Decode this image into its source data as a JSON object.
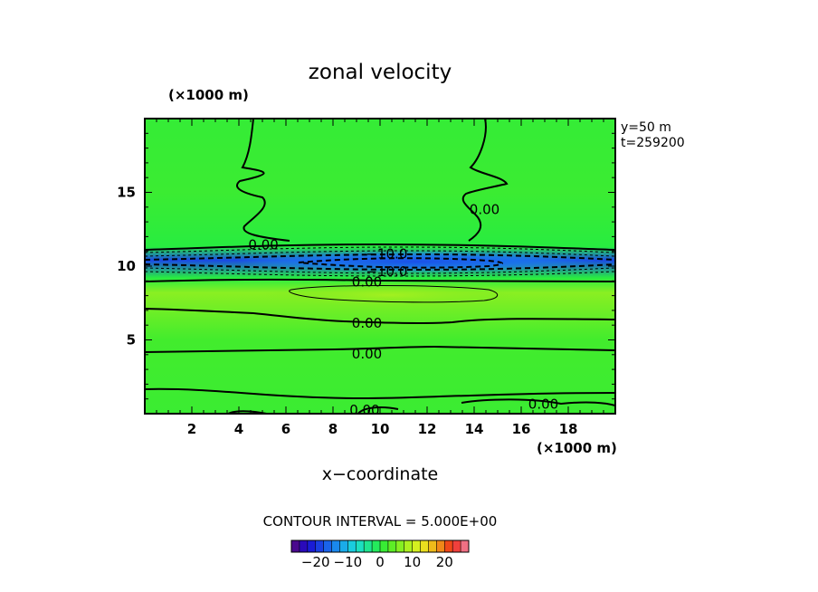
{
  "chart_data": {
    "type": "heatmap",
    "title": "zonal velocity",
    "xlabel": "x−coordinate",
    "x_unit": "(×1000 m)",
    "y_unit": "(×1000 m)",
    "annotations": [
      "y=50  m",
      "t=259200"
    ],
    "contour_interval": "CONTOUR INTERVAL = 5.000E+00",
    "xlim": [
      0,
      20
    ],
    "ylim": [
      0,
      20
    ],
    "x_ticks": [
      2,
      4,
      6,
      8,
      10,
      12,
      14,
      16,
      18
    ],
    "x_tick_labels": [
      "2",
      "4",
      "6",
      "8",
      "10",
      "12",
      "14",
      "16",
      "18"
    ],
    "y_ticks": [
      5,
      10,
      15
    ],
    "y_tick_labels": [
      "5",
      "10",
      "15"
    ],
    "contour_labels": [
      {
        "text": "0.00",
        "x": 4.4,
        "y": 11.5
      },
      {
        "text": "−10.0",
        "x": 9.4,
        "y": 10.9
      },
      {
        "text": "−10.0",
        "x": 9.4,
        "y": 9.7
      },
      {
        "text": "0.00",
        "x": 8.8,
        "y": 9.0
      },
      {
        "text": "0.00",
        "x": 13.8,
        "y": 13.9
      },
      {
        "text": "0.00",
        "x": 8.8,
        "y": 6.2
      },
      {
        "text": "0.00",
        "x": 8.8,
        "y": 4.1
      },
      {
        "text": "0.00",
        "x": 16.3,
        "y": 0.7
      },
      {
        "text": "0.00",
        "x": 8.7,
        "y": 0.3
      }
    ],
    "field_summary": [
      {
        "y": 0,
        "u": 1.5
      },
      {
        "y": 5,
        "u": 2.0
      },
      {
        "y": 8.2,
        "u": 6.5
      },
      {
        "y": 9.2,
        "u": 0.0
      },
      {
        "y": 10.4,
        "u": -18.0
      },
      {
        "y": 11.3,
        "u": 0.0
      },
      {
        "y": 15,
        "u": 1.5
      },
      {
        "y": 20,
        "u": 1.0
      }
    ],
    "colorbar": {
      "tick_values": [
        -20,
        -10,
        0,
        10,
        20
      ],
      "tick_labels": [
        "−20",
        "−10",
        "0",
        "10",
        "20"
      ],
      "min": -27.5,
      "max": 27.5,
      "step": 2.5
    }
  }
}
